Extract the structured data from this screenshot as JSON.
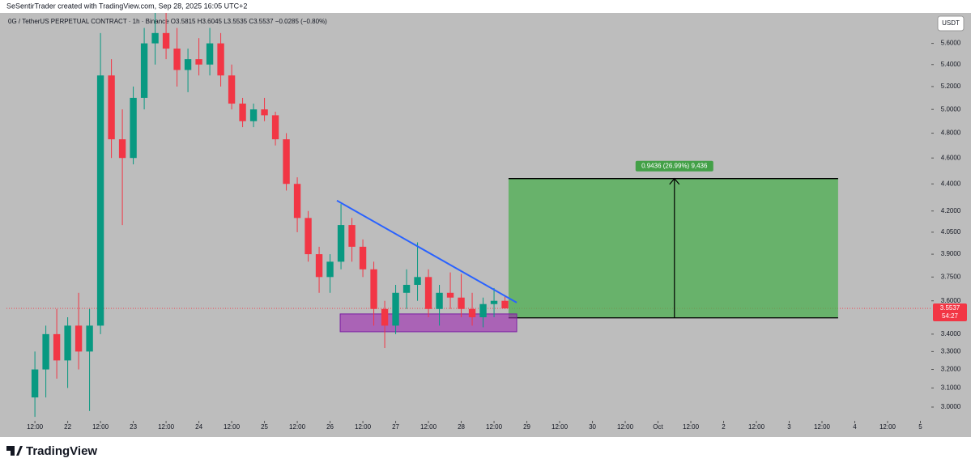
{
  "chart_data": {
    "type": "candlestick",
    "header": "SeSentirTrader created with TradingView.com, Sep 28, 2025 16:05 UTC+2",
    "legend": "0G / TetherUS PERPETUAL CONTRACT · 1h · Binance  O3.5815  H3.6045  L3.5535  C3.5537  −0.0285 (−0.80%)",
    "currency": "USDT",
    "brand": "TradingView",
    "x": [
      12,
      16,
      20,
      24,
      28,
      32,
      36,
      40,
      44,
      48,
      52,
      56,
      60,
      64,
      68,
      72,
      76,
      80,
      84,
      88,
      92,
      96,
      100,
      104,
      108,
      112,
      116,
      120,
      124,
      128,
      132,
      136,
      140,
      144,
      148,
      152,
      156,
      160,
      164,
      168,
      172,
      176,
      180,
      184
    ],
    "open": [
      3.05,
      3.2,
      3.4,
      3.25,
      3.45,
      3.3,
      3.45,
      5.3,
      4.75,
      4.6,
      5.1,
      5.6,
      5.7,
      5.55,
      5.35,
      5.45,
      5.4,
      5.6,
      5.3,
      5.05,
      4.9,
      5.0,
      4.95,
      4.75,
      4.4,
      4.15,
      3.9,
      3.75,
      3.85,
      4.1,
      3.95,
      3.8,
      3.55,
      3.45,
      3.65,
      3.7,
      3.75,
      3.55,
      3.65,
      3.62,
      3.55,
      3.5,
      3.58,
      3.6
    ],
    "high": [
      3.3,
      3.45,
      3.55,
      3.5,
      3.65,
      3.55,
      5.7,
      5.45,
      5.0,
      5.2,
      5.75,
      5.9,
      5.9,
      5.75,
      5.55,
      5.65,
      5.75,
      5.7,
      5.4,
      5.1,
      5.05,
      5.1,
      4.98,
      4.8,
      4.45,
      4.2,
      3.95,
      3.9,
      4.25,
      4.15,
      4.0,
      3.85,
      3.6,
      3.7,
      3.8,
      3.98,
      3.8,
      3.7,
      3.78,
      3.77,
      3.65,
      3.62,
      3.68,
      3.63
    ],
    "low": [
      2.95,
      3.05,
      3.15,
      3.1,
      3.2,
      2.98,
      3.4,
      4.6,
      4.1,
      4.55,
      5.0,
      5.4,
      5.45,
      5.2,
      5.15,
      5.3,
      5.3,
      5.2,
      5.0,
      4.85,
      4.85,
      4.9,
      4.7,
      4.35,
      4.05,
      3.85,
      3.65,
      3.65,
      3.8,
      3.85,
      3.75,
      3.45,
      3.32,
      3.4,
      3.55,
      3.6,
      3.5,
      3.45,
      3.55,
      3.5,
      3.45,
      3.44,
      3.5,
      3.55
    ],
    "close": [
      3.2,
      3.4,
      3.25,
      3.45,
      3.3,
      3.45,
      5.3,
      4.75,
      4.6,
      5.1,
      5.6,
      5.7,
      5.55,
      5.35,
      5.45,
      5.4,
      5.6,
      5.3,
      5.05,
      4.9,
      5.0,
      4.95,
      4.75,
      4.4,
      4.15,
      3.9,
      3.75,
      3.85,
      4.1,
      3.95,
      3.8,
      3.55,
      3.45,
      3.65,
      3.7,
      3.75,
      3.55,
      3.65,
      3.62,
      3.55,
      3.5,
      3.58,
      3.6,
      3.5537
    ],
    "up_color": "#089981",
    "down_color": "#f23645",
    "last_price": 3.5537,
    "countdown": "54:27",
    "log_scale": true,
    "xlim": [
      1.6,
      340
    ],
    "ylim": [
      2.93,
      5.9
    ],
    "xticks": [
      {
        "value": 12,
        "label": "12:00"
      },
      {
        "value": 24,
        "label": "22"
      },
      {
        "value": 36,
        "label": "12:00"
      },
      {
        "value": 48,
        "label": "23"
      },
      {
        "value": 60,
        "label": "12:00"
      },
      {
        "value": 72,
        "label": "24"
      },
      {
        "value": 84,
        "label": "12:00"
      },
      {
        "value": 96,
        "label": "25"
      },
      {
        "value": 108,
        "label": "12:00"
      },
      {
        "value": 120,
        "label": "26"
      },
      {
        "value": 132,
        "label": "12:00"
      },
      {
        "value": 144,
        "label": "27"
      },
      {
        "value": 156,
        "label": "12:00"
      },
      {
        "value": 168,
        "label": "28"
      },
      {
        "value": 180,
        "label": "12:00"
      },
      {
        "value": 192,
        "label": "29"
      },
      {
        "value": 204,
        "label": "12:00"
      },
      {
        "value": 216,
        "label": "30"
      },
      {
        "value": 228,
        "label": "12:00"
      },
      {
        "value": 240,
        "label": "Oct"
      },
      {
        "value": 252,
        "label": "12:00"
      },
      {
        "value": 264,
        "label": "2"
      },
      {
        "value": 276,
        "label": "12:00"
      },
      {
        "value": 288,
        "label": "3"
      },
      {
        "value": 300,
        "label": "12:00"
      },
      {
        "value": 312,
        "label": "4"
      },
      {
        "value": 324,
        "label": "12:00"
      },
      {
        "value": 336,
        "label": "5"
      }
    ],
    "yticks": [
      {
        "value": 3.0,
        "label": "3.0000"
      },
      {
        "value": 3.1,
        "label": "3.1000"
      },
      {
        "value": 3.2,
        "label": "3.2000"
      },
      {
        "value": 3.3,
        "label": "3.3000"
      },
      {
        "value": 3.4,
        "label": "3.4000"
      },
      {
        "value": 3.6,
        "label": "3.6000"
      },
      {
        "value": 3.75,
        "label": "3.7500"
      },
      {
        "value": 3.9,
        "label": "3.9000"
      },
      {
        "value": 4.05,
        "label": "4.0500"
      },
      {
        "value": 4.2,
        "label": "4.2000"
      },
      {
        "value": 4.4,
        "label": "4.4000"
      },
      {
        "value": 4.6,
        "label": "4.6000"
      },
      {
        "value": 4.8,
        "label": "4.8000"
      },
      {
        "value": 5.0,
        "label": "5.0000"
      },
      {
        "value": 5.2,
        "label": "5.2000"
      },
      {
        "value": 5.4,
        "label": "5.4000"
      },
      {
        "value": 5.6,
        "label": "5.6000"
      }
    ],
    "trendline": {
      "x": [
        122.5,
        188.3
      ],
      "y": [
        4.276,
        3.589
      ],
      "color": "#2962ff"
    },
    "support_zone": {
      "x": [
        123.7,
        188.3
      ],
      "y": [
        3.414,
        3.52
      ],
      "color": "#9c27b0"
    },
    "target_zone": {
      "x": [
        185.3,
        305.9
      ],
      "y": [
        3.4964,
        4.44
      ],
      "color": "#4caf50",
      "arrow_x": 246,
      "label": "0.9436 (26.99%) 9,436"
    }
  }
}
